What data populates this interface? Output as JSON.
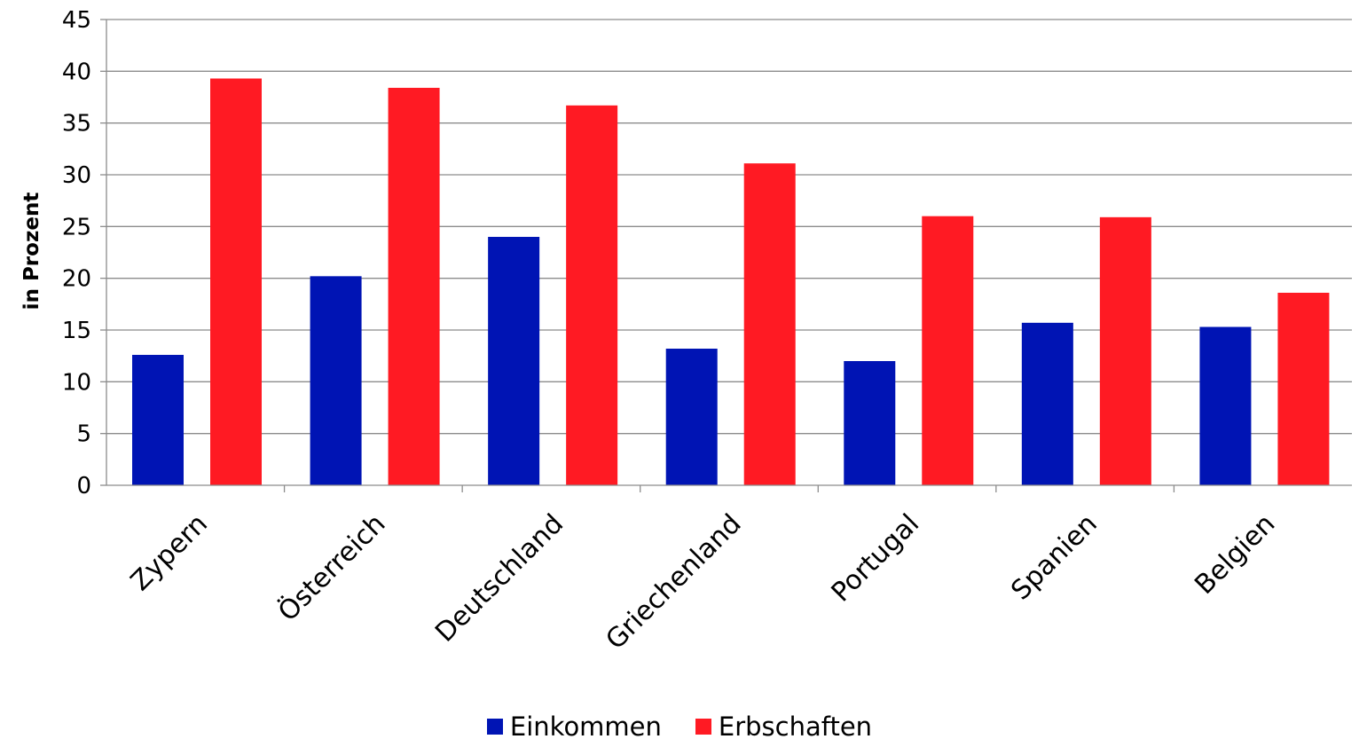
{
  "chart_data": {
    "type": "bar",
    "categories": [
      "Zypern",
      "Österreich",
      "Deutschland",
      "Griechenland",
      "Portugal",
      "Spanien",
      "Belgien"
    ],
    "series": [
      {
        "name": "Einkommen",
        "color": "#0014b4",
        "values": [
          12.6,
          20.2,
          24.0,
          13.2,
          12.0,
          15.7,
          15.3
        ]
      },
      {
        "name": "Erbschaften",
        "color": "#ff1a23",
        "values": [
          39.3,
          38.4,
          36.7,
          31.1,
          26.0,
          25.9,
          18.6
        ]
      }
    ],
    "title": "",
    "xlabel": "",
    "ylabel": "in Prozent",
    "ylim": [
      0,
      45
    ],
    "yticks": [
      0,
      5,
      10,
      15,
      20,
      25,
      30,
      35,
      40,
      45
    ],
    "grid": true,
    "legend_position": "bottom"
  }
}
